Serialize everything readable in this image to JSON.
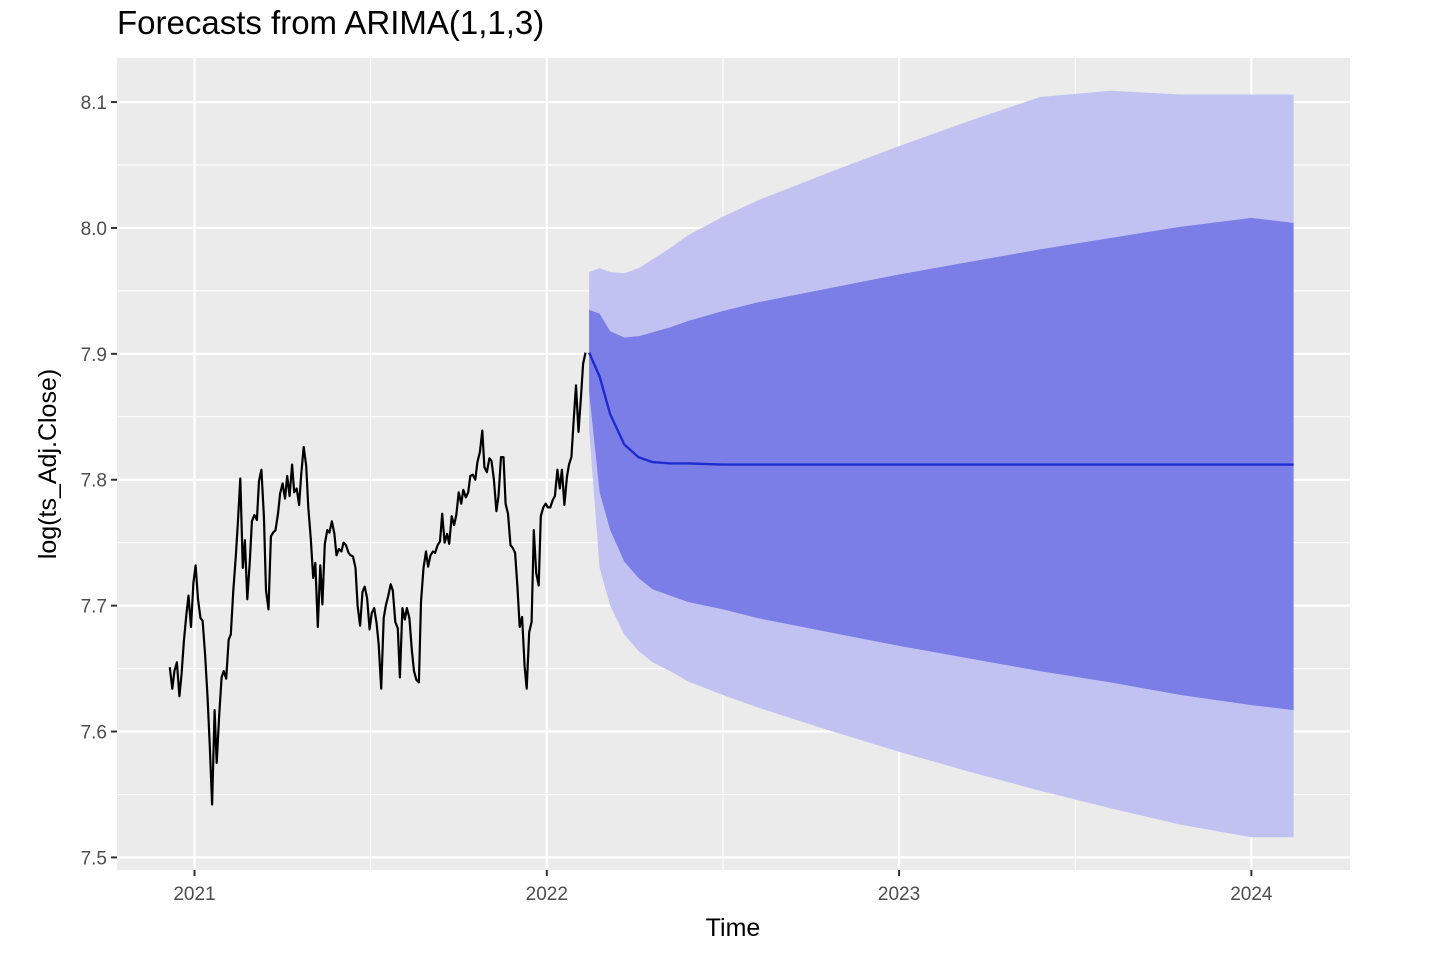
{
  "chart_data": {
    "type": "line",
    "title": "Forecasts from ARIMA(1,1,3)",
    "xlabel": "Time",
    "ylabel": "log(ts_Adj.Close)",
    "xlim": [
      2020.78,
      2024.28
    ],
    "ylim": [
      7.49,
      8.135
    ],
    "x_ticks": [
      2021,
      2022,
      2023,
      2024
    ],
    "x_tick_labels": [
      "2021",
      "2022",
      "2023",
      "2024"
    ],
    "y_ticks": [
      7.5,
      7.6,
      7.7,
      7.8,
      7.9,
      8.0,
      8.1
    ],
    "y_tick_labels": [
      "7.5",
      "7.6",
      "7.7",
      "7.8",
      "7.9",
      "8.0",
      "8.1"
    ],
    "grid": true,
    "colors": {
      "panel_background": "#ebebeb",
      "grid": "#ffffff",
      "history_line": "#000000",
      "forecast_line": "#1e2bd0",
      "band_80": "#7b7ee6",
      "band_95": "#c2c2f2"
    },
    "series": [
      {
        "kind": "history",
        "x": [
          2020.93,
          2020.937,
          2020.943,
          2020.95,
          2020.957,
          2020.963,
          2020.97,
          2020.977,
          2020.983,
          2020.99,
          2020.997,
          2021.003,
          2021.01,
          2021.017,
          2021.023,
          2021.03,
          2021.037,
          2021.043,
          2021.05,
          2021.057,
          2021.063,
          2021.07,
          2021.077,
          2021.083,
          2021.09,
          2021.097,
          2021.103,
          2021.11,
          2021.117,
          2021.123,
          2021.13,
          2021.137,
          2021.143,
          2021.15,
          2021.157,
          2021.163,
          2021.17,
          2021.177,
          2021.183,
          2021.19,
          2021.197,
          2021.203,
          2021.21,
          2021.217,
          2021.223,
          2021.23,
          2021.237,
          2021.243,
          2021.25,
          2021.257,
          2021.263,
          2021.27,
          2021.277,
          2021.283,
          2021.29,
          2021.297,
          2021.303,
          2021.31,
          2021.317,
          2021.323,
          2021.33,
          2021.337,
          2021.343,
          2021.35,
          2021.357,
          2021.363,
          2021.37,
          2021.377,
          2021.383,
          2021.39,
          2021.397,
          2021.403,
          2021.41,
          2021.417,
          2021.423,
          2021.43,
          2021.437,
          2021.443,
          2021.45,
          2021.457,
          2021.463,
          2021.47,
          2021.477,
          2021.483,
          2021.49,
          2021.497,
          2021.503,
          2021.51,
          2021.517,
          2021.523,
          2021.53,
          2021.537,
          2021.543,
          2021.55,
          2021.557,
          2021.563,
          2021.57,
          2021.577,
          2021.583,
          2021.59,
          2021.597,
          2021.603,
          2021.61,
          2021.617,
          2021.623,
          2021.63,
          2021.637,
          2021.643,
          2021.65,
          2021.657,
          2021.663,
          2021.67,
          2021.677,
          2021.683,
          2021.69,
          2021.697,
          2021.703,
          2021.71,
          2021.717,
          2021.723,
          2021.73,
          2021.737,
          2021.743,
          2021.75,
          2021.757,
          2021.763,
          2021.77,
          2021.777,
          2021.783,
          2021.79,
          2021.797,
          2021.803,
          2021.81,
          2021.817,
          2021.823,
          2021.83,
          2021.837,
          2021.843,
          2021.85,
          2021.857,
          2021.863,
          2021.87,
          2021.877,
          2021.883,
          2021.89,
          2021.897,
          2021.903,
          2021.91,
          2021.917,
          2021.923,
          2021.93,
          2021.937,
          2021.943,
          2021.95,
          2021.957,
          2021.963,
          2021.97,
          2021.977,
          2021.983,
          2021.99,
          2021.997,
          2022.003,
          2022.01,
          2022.017,
          2022.023,
          2022.03,
          2022.037,
          2022.043,
          2022.05,
          2022.057,
          2022.063,
          2022.07,
          2022.077,
          2022.083,
          2022.09,
          2022.097,
          2022.103,
          2022.11,
          2022.117
        ],
        "y": [
          7.651,
          7.634,
          7.648,
          7.655,
          7.628,
          7.645,
          7.672,
          7.693,
          7.708,
          7.683,
          7.718,
          7.732,
          7.705,
          7.69,
          7.688,
          7.661,
          7.628,
          7.59,
          7.542,
          7.617,
          7.575,
          7.613,
          7.643,
          7.648,
          7.642,
          7.673,
          7.677,
          7.712,
          7.738,
          7.765,
          7.801,
          7.73,
          7.752,
          7.705,
          7.735,
          7.767,
          7.772,
          7.768,
          7.799,
          7.808,
          7.771,
          7.712,
          7.697,
          7.755,
          7.758,
          7.76,
          7.773,
          7.789,
          7.797,
          7.785,
          7.803,
          7.787,
          7.812,
          7.79,
          7.793,
          7.78,
          7.804,
          7.826,
          7.811,
          7.778,
          7.753,
          7.722,
          7.734,
          7.683,
          7.732,
          7.701,
          7.749,
          7.76,
          7.758,
          7.767,
          7.757,
          7.74,
          7.745,
          7.743,
          7.75,
          7.748,
          7.742,
          7.74,
          7.739,
          7.73,
          7.7,
          7.684,
          7.711,
          7.715,
          7.706,
          7.681,
          7.694,
          7.698,
          7.686,
          7.669,
          7.634,
          7.69,
          7.7,
          7.708,
          7.717,
          7.712,
          7.687,
          7.682,
          7.643,
          7.698,
          7.689,
          7.698,
          7.69,
          7.664,
          7.648,
          7.641,
          7.639,
          7.703,
          7.73,
          7.743,
          7.731,
          7.74,
          7.743,
          7.742,
          7.748,
          7.751,
          7.773,
          7.75,
          7.757,
          7.749,
          7.771,
          7.764,
          7.772,
          7.79,
          7.781,
          7.792,
          7.786,
          7.79,
          7.803,
          7.804,
          7.8,
          7.814,
          7.822,
          7.839,
          7.81,
          7.806,
          7.817,
          7.815,
          7.8,
          7.775,
          7.787,
          7.818,
          7.818,
          7.781,
          7.773,
          7.748,
          7.746,
          7.742,
          7.714,
          7.683,
          7.691,
          7.652,
          7.634,
          7.679,
          7.687,
          7.76,
          7.726,
          7.716,
          7.771,
          7.778,
          7.781,
          7.778,
          7.778,
          7.784,
          7.787,
          7.808,
          7.793,
          7.808,
          7.78,
          7.802,
          7.812,
          7.818,
          7.85,
          7.875,
          7.838,
          7.866,
          7.892,
          7.901
        ]
      },
      {
        "kind": "forecast",
        "x": [
          2022.12,
          2022.15,
          2022.18,
          2022.22,
          2022.26,
          2022.3,
          2022.35,
          2022.4,
          2022.5,
          2022.6,
          2022.8,
          2023.0,
          2023.2,
          2023.4,
          2023.6,
          2023.8,
          2024.0,
          2024.12
        ],
        "mean": [
          7.901,
          7.882,
          7.852,
          7.828,
          7.818,
          7.814,
          7.813,
          7.813,
          7.812,
          7.812,
          7.812,
          7.812,
          7.812,
          7.812,
          7.812,
          7.812,
          7.812,
          7.812
        ],
        "lo80": [
          7.87,
          7.79,
          7.76,
          7.735,
          7.722,
          7.713,
          7.708,
          7.703,
          7.697,
          7.69,
          7.679,
          7.668,
          7.658,
          7.648,
          7.639,
          7.629,
          7.621,
          7.617
        ],
        "hi80": [
          7.935,
          7.932,
          7.918,
          7.913,
          7.914,
          7.917,
          7.921,
          7.926,
          7.934,
          7.941,
          7.952,
          7.963,
          7.973,
          7.983,
          7.992,
          8.001,
          8.008,
          8.004
        ],
        "lo95": [
          7.84,
          7.73,
          7.7,
          7.677,
          7.664,
          7.655,
          7.648,
          7.64,
          7.629,
          7.619,
          7.601,
          7.584,
          7.568,
          7.553,
          7.539,
          7.526,
          7.516,
          7.516
        ],
        "hi95": [
          7.965,
          7.968,
          7.965,
          7.964,
          7.968,
          7.975,
          7.984,
          7.994,
          8.009,
          8.022,
          8.044,
          8.065,
          8.085,
          8.104,
          8.109,
          8.106,
          8.106,
          8.106
        ]
      }
    ]
  }
}
